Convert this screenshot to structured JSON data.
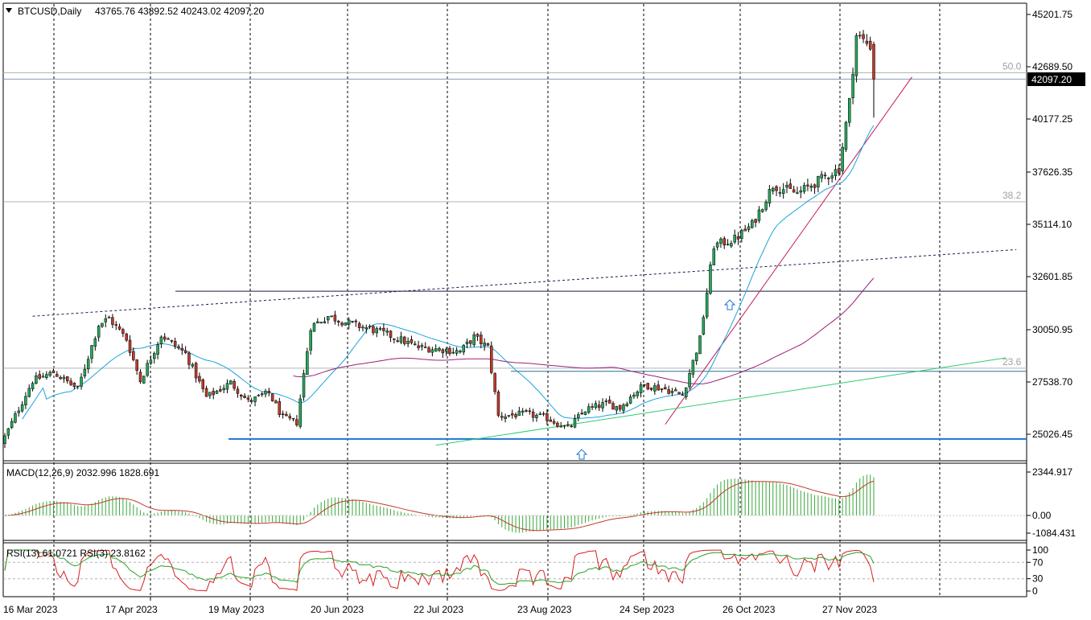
{
  "chart_data": {
    "type": "candlestick",
    "header": {
      "symbol_timeframe": "BTCUSD,Daily",
      "ohlc": "43765.76 43892.52 40243.02 42097.20"
    },
    "last_price_label": "42097.20",
    "price_axis": {
      "ticks": [
        "45201.75",
        "42689.50",
        "40177.25",
        "37626.35",
        "35114.10",
        "32601.85",
        "30050.95",
        "27538.70",
        "25026.45"
      ],
      "range": [
        24400,
        45800
      ]
    },
    "x_axis": {
      "ticks": [
        "16 Mar 2023",
        "17 Apr 2023",
        "19 May 2023",
        "20 Jun 2023",
        "22 Jul 2023",
        "23 Aug 2023",
        "24 Sep 2023",
        "26 Oct 2023",
        "27 Nov 2023"
      ]
    },
    "fib_levels": [
      {
        "label": "50.0",
        "price": 42400
      },
      {
        "label": "38.2",
        "price": 36200
      },
      {
        "label": "23.6",
        "price": 28200
      }
    ],
    "horizontal_levels": [
      31900,
      28050,
      24800
    ],
    "grid": true,
    "colors": {
      "up": "#26a65b",
      "down": "#c0392b",
      "ma_fast": "#1ca3d9",
      "ma_slow": "#9b1f78",
      "trend_up": "#c2185b",
      "trend_green": "#2ecc71",
      "support": "#1e73d8",
      "macd_hist": "#3aa63a",
      "macd_signal": "#c0392b",
      "rsi_fast": "#d62020",
      "rsi_slow": "#2aa02a"
    },
    "macd": {
      "label": "MACD(12,26,9) 2032.996 1828.691",
      "ticks": [
        "2344.917",
        "0.00",
        "-1084.431"
      ]
    },
    "rsi": {
      "label": "RSI(13) 61.0721  RSI(3) 23.8162",
      "ticks": [
        "100",
        "70",
        "30",
        "0"
      ]
    },
    "anchors": [
      {
        "day": 0,
        "price": 24900
      },
      {
        "day": 8,
        "price": 27600
      },
      {
        "day": 14,
        "price": 28000
      },
      {
        "day": 21,
        "price": 27200
      },
      {
        "day": 27,
        "price": 30300
      },
      {
        "day": 30,
        "price": 30600
      },
      {
        "day": 35,
        "price": 29600
      },
      {
        "day": 39,
        "price": 27600
      },
      {
        "day": 45,
        "price": 29800
      },
      {
        "day": 52,
        "price": 28900
      },
      {
        "day": 58,
        "price": 26800
      },
      {
        "day": 65,
        "price": 27500
      },
      {
        "day": 70,
        "price": 26600
      },
      {
        "day": 76,
        "price": 27000
      },
      {
        "day": 80,
        "price": 25800
      },
      {
        "day": 84,
        "price": 25600
      },
      {
        "day": 88,
        "price": 30200
      },
      {
        "day": 93,
        "price": 30700
      },
      {
        "day": 100,
        "price": 30300
      },
      {
        "day": 105,
        "price": 30100
      },
      {
        "day": 112,
        "price": 29700
      },
      {
        "day": 119,
        "price": 29200
      },
      {
        "day": 126,
        "price": 29100
      },
      {
        "day": 131,
        "price": 29000
      },
      {
        "day": 135,
        "price": 29700
      },
      {
        "day": 139,
        "price": 29200
      },
      {
        "day": 142,
        "price": 25900
      },
      {
        "day": 150,
        "price": 26000
      },
      {
        "day": 156,
        "price": 25800
      },
      {
        "day": 162,
        "price": 25300
      },
      {
        "day": 167,
        "price": 26200
      },
      {
        "day": 173,
        "price": 26500
      },
      {
        "day": 177,
        "price": 26300
      },
      {
        "day": 181,
        "price": 27000
      },
      {
        "day": 184,
        "price": 27400
      },
      {
        "day": 190,
        "price": 27200
      },
      {
        "day": 195,
        "price": 26900
      },
      {
        "day": 200,
        "price": 29600
      },
      {
        "day": 204,
        "price": 34100
      },
      {
        "day": 210,
        "price": 34400
      },
      {
        "day": 215,
        "price": 35100
      },
      {
        "day": 221,
        "price": 37000
      },
      {
        "day": 228,
        "price": 36600
      },
      {
        "day": 235,
        "price": 37300
      },
      {
        "day": 240,
        "price": 37800
      },
      {
        "day": 243,
        "price": 41000
      },
      {
        "day": 245,
        "price": 44200
      },
      {
        "day": 249,
        "price": 43700
      },
      {
        "day": 250,
        "price": 42097
      }
    ]
  }
}
